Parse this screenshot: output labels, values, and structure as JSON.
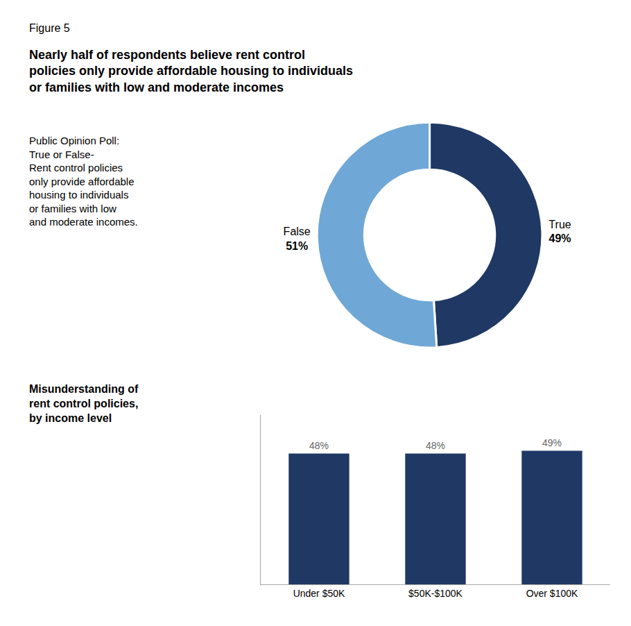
{
  "chart_data": [
    {
      "type": "pie",
      "title": "Nearly half of respondents believe rent control\npolicies only provide affordable housing to individuals\nor families with low and moderate incomes",
      "annotations": [
        "Figure 5",
        "Public Opinion Poll:\nTrue or False-\nRent control policies\nonly provide affordable\nhousing to individuals\nor families with low\nand moderate incomes."
      ],
      "categories": [
        "True",
        "False"
      ],
      "values": [
        49,
        51
      ],
      "value_labels": [
        "49%",
        "51%"
      ],
      "colors": [
        "#1f3864",
        "#6fa8d6"
      ],
      "data_labels": true
    },
    {
      "type": "bar",
      "title": "Misunderstanding of\nrent control policies,\nby income level",
      "categories": [
        "Under $50K",
        "$50K-$100K",
        "Over $100K"
      ],
      "values": [
        48,
        48,
        49
      ],
      "value_labels": [
        "48%",
        "48%",
        "49%"
      ],
      "color": "#1f3864",
      "ylim": [
        0,
        62
      ],
      "yticks": [],
      "tick_labels": "x",
      "grid": false,
      "data_labels": true
    }
  ]
}
